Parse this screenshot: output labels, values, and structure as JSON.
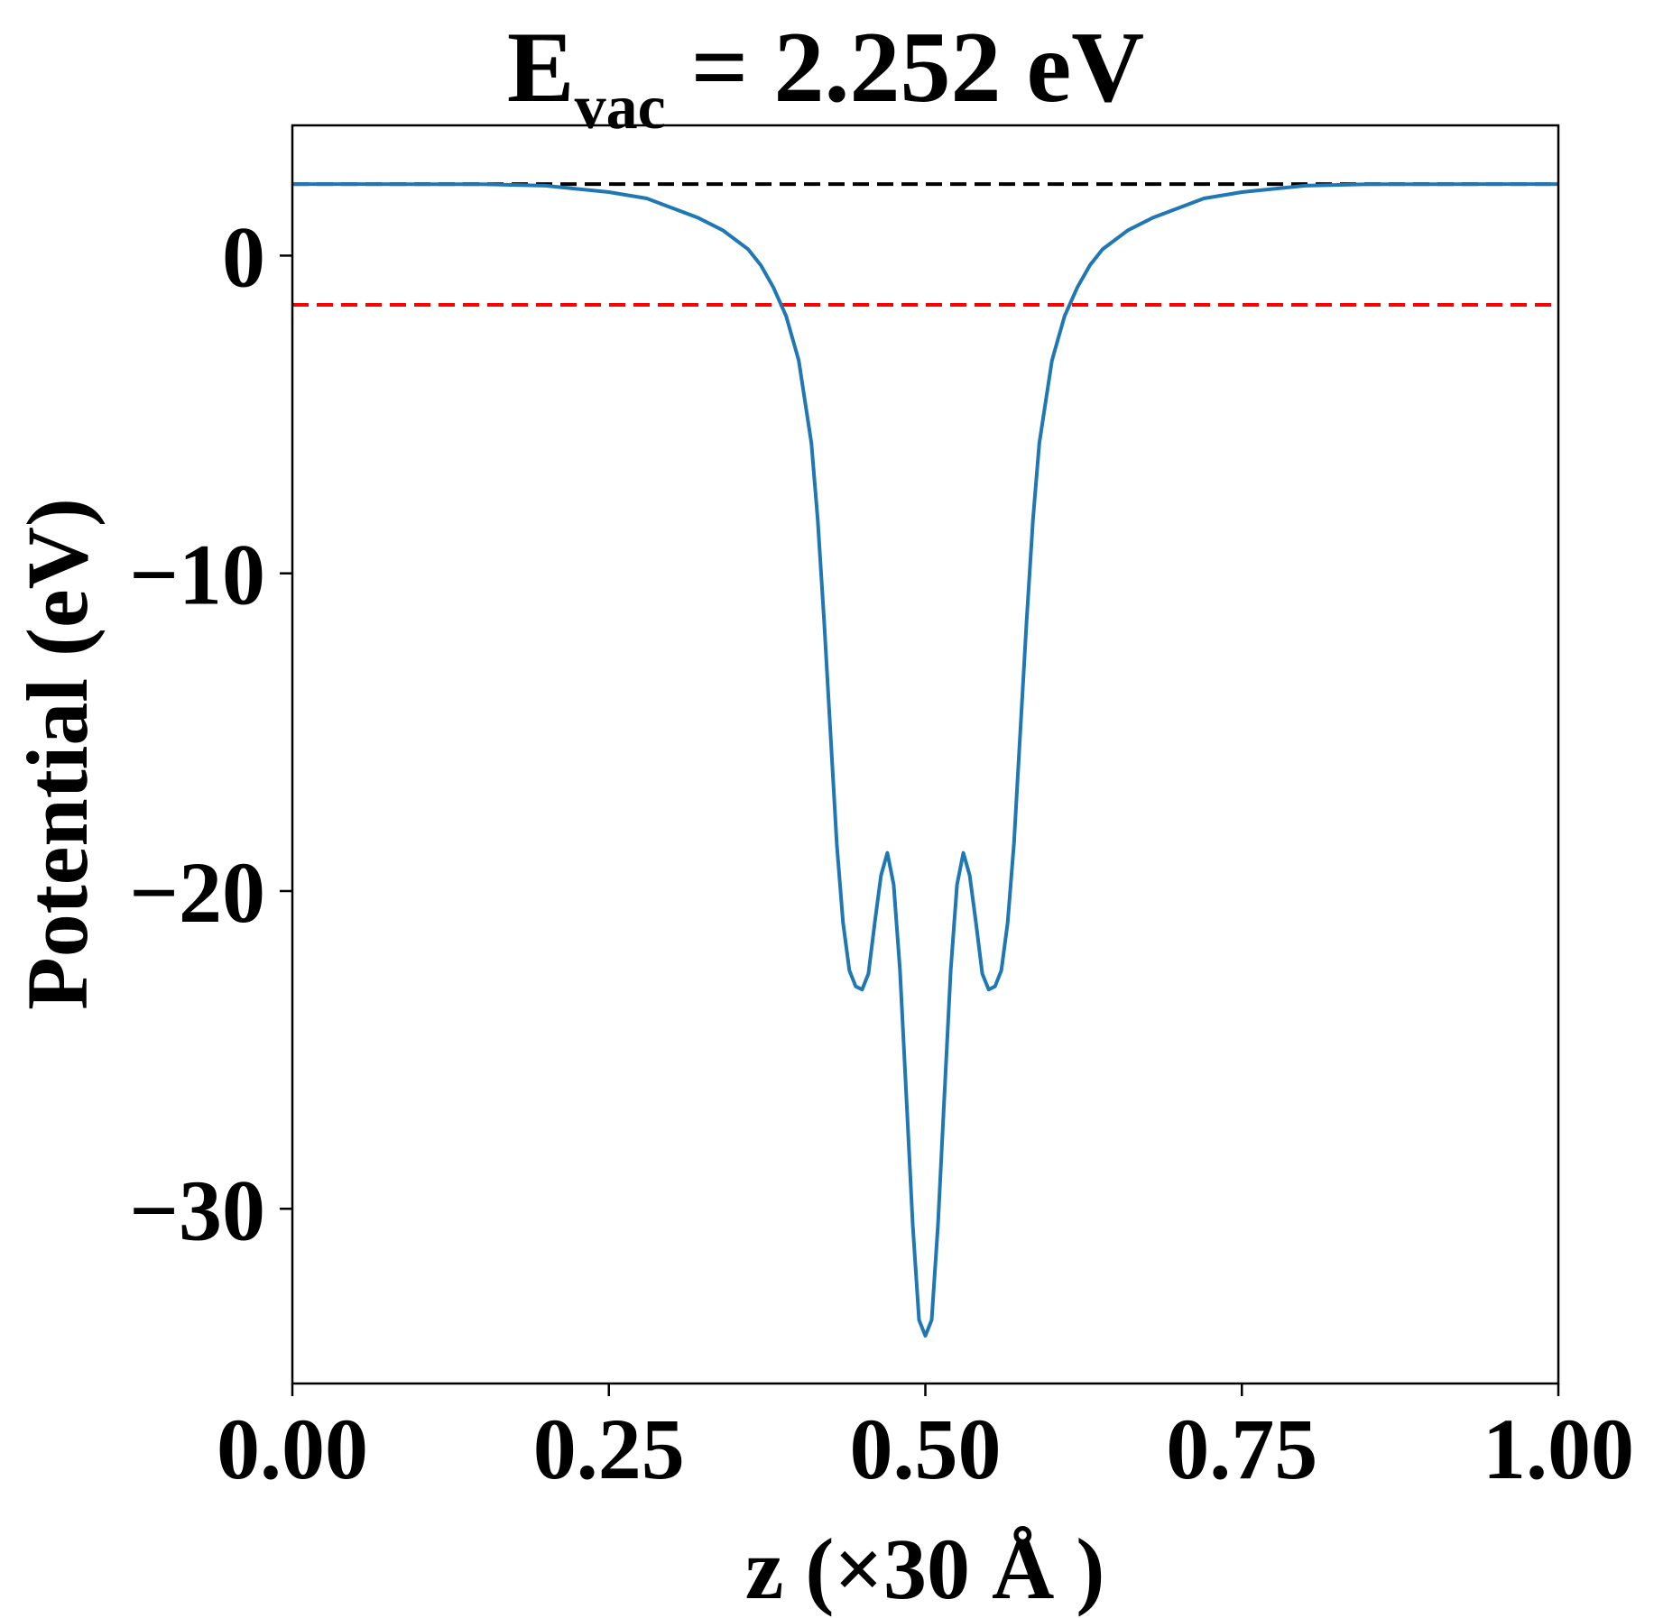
{
  "chart_data": {
    "type": "line",
    "title": {
      "main": "E",
      "subscript": "vac",
      "rest": " = 2.252 eV"
    },
    "xlabel": "z (×30 Å )",
    "ylabel": "Potential (eV)",
    "xlim": [
      0.0,
      1.0
    ],
    "ylim": [
      -35.5,
      4.1
    ],
    "xticks": [
      {
        "value": 0.0,
        "label": "0.00"
      },
      {
        "value": 0.25,
        "label": "0.25"
      },
      {
        "value": 0.5,
        "label": "0.50"
      },
      {
        "value": 0.75,
        "label": "0.75"
      },
      {
        "value": 1.0,
        "label": "1.00"
      }
    ],
    "yticks": [
      {
        "value": 0,
        "label": "0"
      },
      {
        "value": -10,
        "label": "−10"
      },
      {
        "value": -20,
        "label": "−20"
      },
      {
        "value": -30,
        "label": "−30"
      }
    ],
    "grid": false,
    "reference_lines": [
      {
        "y": 2.252,
        "color": "#000000",
        "style": "dashed"
      },
      {
        "y": -1.55,
        "color": "#ff0000",
        "style": "dashed"
      }
    ],
    "series": [
      {
        "color": "#1f77b4",
        "x": [
          0.0,
          0.05,
          0.1,
          0.15,
          0.2,
          0.25,
          0.28,
          0.3,
          0.32,
          0.34,
          0.36,
          0.37,
          0.38,
          0.39,
          0.4,
          0.41,
          0.415,
          0.42,
          0.425,
          0.43,
          0.435,
          0.44,
          0.445,
          0.45,
          0.455,
          0.46,
          0.465,
          0.47,
          0.475,
          0.48,
          0.485,
          0.49,
          0.495,
          0.5,
          0.505,
          0.51,
          0.515,
          0.52,
          0.525,
          0.53,
          0.535,
          0.54,
          0.545,
          0.55,
          0.555,
          0.56,
          0.565,
          0.57,
          0.575,
          0.58,
          0.585,
          0.59,
          0.6,
          0.61,
          0.62,
          0.63,
          0.64,
          0.66,
          0.68,
          0.7,
          0.72,
          0.75,
          0.8,
          0.85,
          0.9,
          0.95,
          1.0
        ],
        "y": [
          2.252,
          2.252,
          2.25,
          2.245,
          2.2,
          2.0,
          1.8,
          1.5,
          1.2,
          0.8,
          0.2,
          -0.3,
          -1.0,
          -1.9,
          -3.3,
          -5.9,
          -8.3,
          -11.5,
          -15.0,
          -18.5,
          -21.0,
          -22.5,
          -23.0,
          -23.1,
          -22.6,
          -21.0,
          -19.5,
          -18.8,
          -19.8,
          -22.5,
          -26.5,
          -30.5,
          -33.5,
          -34.0,
          -33.5,
          -30.5,
          -26.5,
          -22.5,
          -19.8,
          -18.8,
          -19.5,
          -21.0,
          -22.6,
          -23.1,
          -23.0,
          -22.5,
          -21.0,
          -18.5,
          -15.0,
          -11.5,
          -8.3,
          -5.9,
          -3.3,
          -1.9,
          -1.0,
          -0.3,
          0.2,
          0.8,
          1.2,
          1.5,
          1.8,
          2.0,
          2.2,
          2.245,
          2.25,
          2.252,
          2.252
        ]
      }
    ]
  }
}
